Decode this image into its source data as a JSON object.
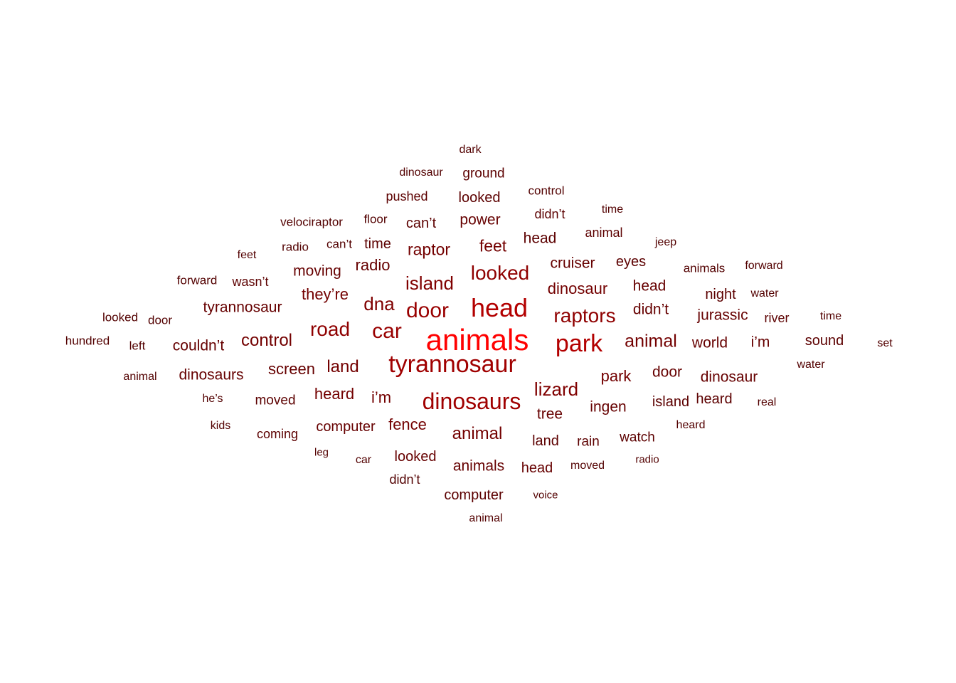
{
  "words": [
    {
      "text": "animals",
      "color": "#ff0000"
    },
    {
      "text": "head",
      "color": "#b30000"
    },
    {
      "text": "park",
      "color": "#b30000"
    },
    {
      "text": "tyrannosaur",
      "color": "#a00000"
    },
    {
      "text": "dinosaurs",
      "color": "#a00000"
    },
    {
      "text": "car",
      "color": "#990000"
    },
    {
      "text": "door",
      "color": "#990000"
    },
    {
      "text": "road",
      "color": "#8f0000"
    },
    {
      "text": "looked",
      "color": "#8f0000"
    },
    {
      "text": "raptors",
      "color": "#8f0000"
    },
    {
      "text": "island",
      "color": "#800000"
    },
    {
      "text": "dna",
      "color": "#800000"
    },
    {
      "text": "lizard",
      "color": "#800000"
    },
    {
      "text": "animal",
      "color": "#730000"
    },
    {
      "text": "control",
      "color": "#730000"
    },
    {
      "text": "land",
      "color": "#730000"
    },
    {
      "text": "raptor",
      "color": "#730000"
    },
    {
      "text": "feet",
      "color": "#730000"
    },
    {
      "text": "dinosaur",
      "color": "#730000"
    },
    {
      "text": "they’re",
      "color": "#730000"
    },
    {
      "text": "heard",
      "color": "#730000"
    },
    {
      "text": "i’m",
      "color": "#730000"
    },
    {
      "text": "park",
      "color": "#730000"
    },
    {
      "text": "animal",
      "color": "#730000"
    },
    {
      "text": "fence",
      "color": "#730000"
    },
    {
      "text": "screen",
      "color": "#660000"
    },
    {
      "text": "radio",
      "color": "#660000"
    },
    {
      "text": "moving",
      "color": "#660000"
    },
    {
      "text": "power",
      "color": "#660000"
    },
    {
      "text": "cruiser",
      "color": "#660000"
    },
    {
      "text": "head",
      "color": "#660000"
    },
    {
      "text": "didn’t",
      "color": "#660000"
    },
    {
      "text": "jurassic",
      "color": "#660000"
    },
    {
      "text": "world",
      "color": "#660000"
    },
    {
      "text": "i’m",
      "color": "#660000"
    },
    {
      "text": "door",
      "color": "#660000"
    },
    {
      "text": "dinosaur",
      "color": "#660000"
    },
    {
      "text": "ingen",
      "color": "#660000"
    },
    {
      "text": "tree",
      "color": "#660000"
    },
    {
      "text": "animals",
      "color": "#660000"
    },
    {
      "text": "tyrannosaur",
      "color": "#660000"
    },
    {
      "text": "couldn’t",
      "color": "#660000"
    },
    {
      "text": "dinosaurs",
      "color": "#660000"
    },
    {
      "text": "computer",
      "color": "#660000"
    },
    {
      "text": "looked",
      "color": "#660000"
    },
    {
      "text": "head",
      "color": "#660000"
    },
    {
      "text": "looked",
      "color": "#5c0000"
    },
    {
      "text": "can’t",
      "color": "#5c0000"
    },
    {
      "text": "time",
      "color": "#5c0000"
    },
    {
      "text": "eyes",
      "color": "#5c0000"
    },
    {
      "text": "night",
      "color": "#5c0000"
    },
    {
      "text": "sound",
      "color": "#5c0000"
    },
    {
      "text": "island",
      "color": "#5c0000"
    },
    {
      "text": "heard",
      "color": "#5c0000"
    },
    {
      "text": "land",
      "color": "#5c0000"
    },
    {
      "text": "rain",
      "color": "#5c0000"
    },
    {
      "text": "watch",
      "color": "#5c0000"
    },
    {
      "text": "moved",
      "color": "#5c0000"
    },
    {
      "text": "coming",
      "color": "#5c0000"
    },
    {
      "text": "computer",
      "color": "#5c0000"
    },
    {
      "text": "ground",
      "color": "#5c0000"
    },
    {
      "text": "pushed",
      "color": "#5c0000"
    },
    {
      "text": "head",
      "color": "#5c0000"
    },
    {
      "text": "animal",
      "color": "#5c0000"
    },
    {
      "text": "didn’t",
      "color": "#5c0000"
    },
    {
      "text": "wasn’t",
      "color": "#5c0000"
    },
    {
      "text": "river",
      "color": "#5c0000"
    },
    {
      "text": "didn’t",
      "color": "#520000"
    },
    {
      "text": "dark",
      "color": "#520000"
    },
    {
      "text": "dinosaur",
      "color": "#520000"
    },
    {
      "text": "control",
      "color": "#520000"
    },
    {
      "text": "time",
      "color": "#520000"
    },
    {
      "text": "velociraptor",
      "color": "#520000"
    },
    {
      "text": "floor",
      "color": "#520000"
    },
    {
      "text": "feet",
      "color": "#520000"
    },
    {
      "text": "radio",
      "color": "#520000"
    },
    {
      "text": "can’t",
      "color": "#520000"
    },
    {
      "text": "jeep",
      "color": "#520000"
    },
    {
      "text": "forward",
      "color": "#520000"
    },
    {
      "text": "animals",
      "color": "#520000"
    },
    {
      "text": "forward",
      "color": "#520000"
    },
    {
      "text": "water",
      "color": "#520000"
    },
    {
      "text": "looked",
      "color": "#520000"
    },
    {
      "text": "door",
      "color": "#520000"
    },
    {
      "text": "time",
      "color": "#520000"
    },
    {
      "text": "hundred",
      "color": "#520000"
    },
    {
      "text": "left",
      "color": "#520000"
    },
    {
      "text": "set",
      "color": "#520000"
    },
    {
      "text": "animal",
      "color": "#520000"
    },
    {
      "text": "water",
      "color": "#520000"
    },
    {
      "text": "he’s",
      "color": "#520000"
    },
    {
      "text": "real",
      "color": "#520000"
    },
    {
      "text": "kids",
      "color": "#520000"
    },
    {
      "text": "heard",
      "color": "#520000"
    },
    {
      "text": "leg",
      "color": "#520000"
    },
    {
      "text": "car",
      "color": "#520000"
    },
    {
      "text": "radio",
      "color": "#520000"
    },
    {
      "text": "moved",
      "color": "#520000"
    },
    {
      "text": "voice",
      "color": "#520000"
    },
    {
      "text": "animal",
      "color": "#520000"
    }
  ]
}
